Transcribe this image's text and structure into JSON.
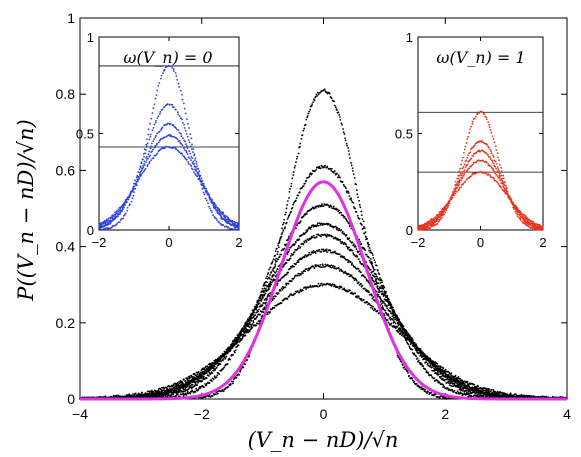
{
  "chart_data": [
    {
      "type": "scatter",
      "panel": "main",
      "title": "",
      "xlabel": "(V_n − nD)/√n",
      "ylabel": "P((V_n − nD)/√n)",
      "xlim": [
        -4,
        4
      ],
      "ylim": [
        0,
        1
      ],
      "xticks": [
        "−4",
        "−2",
        "0",
        "2",
        "4"
      ],
      "yticks": [
        "0",
        "0.2",
        "0.4",
        "0.6",
        "0.8",
        "1"
      ],
      "grid": false,
      "legend": "none",
      "series": [
        {
          "kind": "dotted-bell",
          "peak": 0.81,
          "sigma": 0.62,
          "color": "#000000"
        },
        {
          "kind": "dotted-bell",
          "peak": 0.61,
          "sigma": 0.82,
          "color": "#000000"
        },
        {
          "kind": "dotted-bell",
          "peak": 0.51,
          "sigma": 0.92,
          "color": "#000000"
        },
        {
          "kind": "dotted-bell",
          "peak": 0.46,
          "sigma": 0.98,
          "color": "#000000"
        },
        {
          "kind": "dotted-bell",
          "peak": 0.43,
          "sigma": 1.02,
          "color": "#000000"
        },
        {
          "kind": "dotted-bell",
          "peak": 0.39,
          "sigma": 1.06,
          "color": "#000000"
        },
        {
          "kind": "dotted-bell",
          "peak": 0.35,
          "sigma": 1.1,
          "color": "#000000"
        },
        {
          "kind": "dotted-bell",
          "peak": 0.3,
          "sigma": 1.2,
          "color": "#000000"
        },
        {
          "kind": "solid-gaussian",
          "peak": 0.57,
          "sigma": 0.7,
          "color": "#e032e0"
        }
      ]
    },
    {
      "type": "scatter",
      "panel": "inset-left",
      "title": "ω(V_n) = 0",
      "xlim": [
        -2,
        2
      ],
      "ylim": [
        0,
        1
      ],
      "xticks": [
        "−2",
        "0",
        "2"
      ],
      "yticks": [
        "0",
        "0.5",
        "1"
      ],
      "reference_lines": [
        0.85,
        0.43
      ],
      "series": [
        {
          "kind": "dotted-bell",
          "peak": 0.85,
          "sigma": 0.58,
          "color": "#2b3fe0"
        },
        {
          "kind": "dotted-bell",
          "peak": 0.65,
          "sigma": 0.7,
          "color": "#2b3fe0"
        },
        {
          "kind": "dotted-bell",
          "peak": 0.55,
          "sigma": 0.74,
          "color": "#2b3fe0"
        },
        {
          "kind": "dotted-bell",
          "peak": 0.49,
          "sigma": 0.8,
          "color": "#2b3fe0"
        },
        {
          "kind": "dotted-bell",
          "peak": 0.43,
          "sigma": 0.86,
          "color": "#2b3fe0"
        }
      ]
    },
    {
      "type": "scatter",
      "panel": "inset-right",
      "title": "ω(V_n) = 1",
      "xlim": [
        -2,
        2
      ],
      "ylim": [
        0,
        1
      ],
      "xticks": [
        "−2",
        "0",
        "2"
      ],
      "yticks": [
        "0",
        "0.5",
        "1"
      ],
      "reference_lines": [
        0.61,
        0.3
      ],
      "series": [
        {
          "kind": "dotted-bell",
          "peak": 0.61,
          "sigma": 0.58,
          "color": "#e8321e"
        },
        {
          "kind": "dotted-bell",
          "peak": 0.46,
          "sigma": 0.66,
          "color": "#e8321e"
        },
        {
          "kind": "dotted-bell",
          "peak": 0.41,
          "sigma": 0.7,
          "color": "#e8321e"
        },
        {
          "kind": "dotted-bell",
          "peak": 0.36,
          "sigma": 0.76,
          "color": "#e8321e"
        },
        {
          "kind": "dotted-bell",
          "peak": 0.3,
          "sigma": 0.84,
          "color": "#e8321e"
        }
      ]
    }
  ]
}
